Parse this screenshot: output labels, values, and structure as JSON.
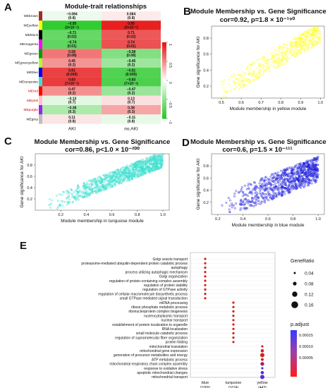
{
  "panel_labels": {
    "a": "A",
    "b": "B",
    "c": "C",
    "d": "D",
    "e": "E"
  },
  "a": {
    "title": "Module-trait relationships",
    "modules": [
      "MEbrown",
      "MEyellow",
      "MEblack",
      "MEmagenta",
      "MEgreen",
      "MEgreenyellow",
      "MEblue",
      "MEturquoise",
      "MEred",
      "MEpink",
      "MEpurple",
      "MEgrey"
    ],
    "module_colors": [
      "#a52a2a",
      "#ffff00",
      "#000000",
      "#ff00ff",
      "#00a000",
      "#adff2f",
      "#0000ff",
      "#40e0d0",
      "#ff0000",
      "#ffc0cb",
      "#a020f0",
      "#bebebe"
    ],
    "columns": [
      "AKI",
      "no.AKI"
    ],
    "cells_aki": [
      "−0.084\n(0.8)",
      "−0.95\n(3×10⁻⁵)",
      "−0.71\n(0.02)",
      "−0.74\n(0.01)",
      "0.58\n(0.08)",
      "0.45\n(0.2)",
      "0.81\n(0.005)",
      "0.83\n(7×10⁻⁴)",
      "0.47\n(0.2)",
      "−0.13\n(0.7)",
      "−0.38\n(0.3)",
      "0.11\n(0.8)"
    ],
    "cells_noaki": [
      "0.084\n(0.8)",
      "0.95\n(3×10⁻⁵)",
      "0.71\n(0.02)",
      "0.74\n(0.01)",
      "−0.58\n(0.08)",
      "−0.45\n(0.2)",
      "−0.81\n(0.005)",
      "−0.83\n(7×10⁻⁴)",
      "−0.47\n(0.2)",
      "0.13\n(0.7)",
      "0.38\n(0.3)",
      "−0.11\n(0.8)"
    ],
    "values_aki": [
      -0.084,
      -0.95,
      -0.71,
      -0.74,
      0.58,
      0.45,
      0.81,
      0.83,
      0.47,
      -0.13,
      -0.38,
      0.11
    ],
    "colorbar_ticks": [
      "1",
      "0.5",
      "0",
      "−0.5",
      "−1"
    ]
  },
  "b": {
    "title": "Module Membership vs. Gene Significance",
    "subtitle": "cor=0.92, p=1.8 × 10⁻¹⁹⁰",
    "xlabel": "Module membership in yellow module",
    "ylabel": "Gene significance for AKI",
    "xticks": [
      "0.5",
      "0.6",
      "0.7",
      "0.8",
      "0.9",
      "1.0"
    ],
    "yticks": [
      "0.2",
      "0.4",
      "0.6",
      "0.8"
    ],
    "color": "#ffff33"
  },
  "c": {
    "title": "Module Membership vs. Gene Significance",
    "subtitle": "cor=0.86, p<1.0 × 10⁻²⁰⁰",
    "xlabel": "Module membership in turquoise module",
    "ylabel": "Gene significance for AKI",
    "xticks": [
      "0.2",
      "0.4",
      "0.6",
      "0.8",
      "1.0"
    ],
    "yticks": [
      "0.2",
      "0.4",
      "0.6",
      "0.8"
    ],
    "color": "#40e0d0"
  },
  "d": {
    "title": "Module Membership vs. Gene Significance",
    "subtitle": "cor=0.6, p=1.5 × 10⁻¹¹¹",
    "xlabel": "Module membership in blue module",
    "ylabel": "Gene significance for AKI",
    "xticks": [
      "0.2",
      "0.4",
      "0.6",
      "0.8",
      "1.0"
    ],
    "yticks": [
      "0.2",
      "0.4",
      "0.6",
      "0.8"
    ],
    "color": "#2222dd"
  },
  "e": {
    "terms": [
      "Golgi vesicle transport",
      "proteasome-mediated ubiquitin-dependent protein catabolic process",
      "autophagy",
      "process utilizing autophagic mechanism",
      "Golgi organization",
      "regulation of protein-containing complex assembly",
      "regulation of protein stability",
      "regulation of GTPase activity",
      "regulation of cellular macromolecule biosynthetic process",
      "small GTPase mediated signal transduction",
      "mRNA processing",
      "ribose phosphate metabolic process",
      "ribonucleoprotein complex biogenesis",
      "nucleocytoplasmic transport",
      "nuclear transport",
      "establishment of protein localization to organelle",
      "RNA localization",
      "small molecule catabolic process",
      "regulation of supramolecular fiber organization",
      "protein folding",
      "mitochondrial translation",
      "mitochondrial gene expression",
      "generation of precursor metabolites and energy",
      "ATP metabolic process",
      "mitochondrial respiratory chain complex assembly",
      "response to oxidative stress",
      "apoptotic mitochondrial changes",
      "mitochondrial transport"
    ],
    "x_groups": [
      {
        "name": "blue",
        "count": "(1065)"
      },
      {
        "name": "turquoise",
        "count": "(1674)"
      },
      {
        "name": "yellow",
        "count": "(443)"
      }
    ],
    "legend": {
      "size_title": "GeneRatio",
      "size_values": [
        "0.04",
        "0.08",
        "0.12",
        "0.16"
      ],
      "color_title": "p.adjust",
      "color_ticks": [
        "0.00015",
        "0.00010",
        "0.00005"
      ]
    }
  }
}
